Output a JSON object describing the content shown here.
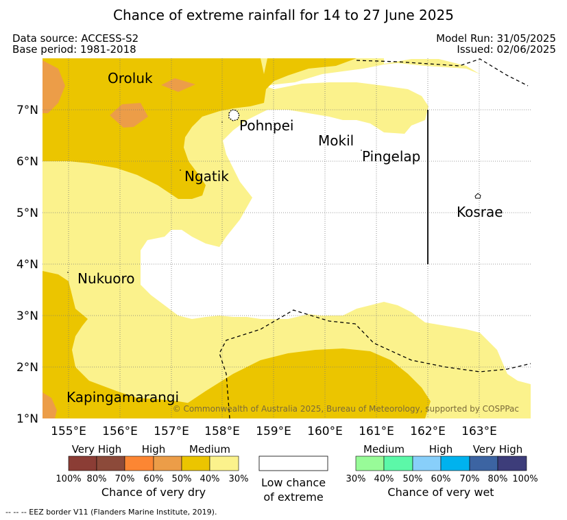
{
  "title": "Chance of extreme rainfall for 14 to 27 June 2025",
  "data_source": "Data source: ACCESS-S2",
  "base_period": "Base period: 1981-2018",
  "model_run": "Model Run: 31/05/2025",
  "issued": "Issued: 02/06/2025",
  "map": {
    "lon_ticks": [
      "155°E",
      "156°E",
      "157°E",
      "158°E",
      "159°E",
      "160°E",
      "161°E",
      "162°E",
      "163°E"
    ],
    "lat_ticks": [
      "1°N",
      "2°N",
      "3°N",
      "4°N",
      "5°N",
      "6°N",
      "7°N"
    ],
    "places": [
      "Oroluk",
      "Pohnpei",
      "Mokil",
      "Pingelap",
      "Ngatik",
      "Kosrae",
      "Nukuoro",
      "Kapingamarangi"
    ],
    "copyright": "© Commonwealth of Australia 2025, Bureau of Meteorology, supported by COSPPac",
    "colors": {
      "dry_very_high_1": "#8b3d35",
      "dry_very_high_2": "#8c4a3a",
      "dry_high_1": "#fc8633",
      "dry_high_2": "#ec9d48",
      "dry_medium_1": "#ebc500",
      "dry_medium_2": "#fbf28c",
      "wet_medium_1": "#98fb98",
      "wet_medium_2": "#5cf8a8",
      "wet_high_1": "#88cffa",
      "wet_high_2": "#00b2ee",
      "wet_very_high_1": "#3c64a2",
      "wet_very_high_2": "#3d3d7a"
    }
  },
  "legend": {
    "dry": {
      "labels": [
        "Very High",
        "High",
        "Medium"
      ],
      "percents": [
        "100%",
        "80%",
        "70%",
        "60%",
        "50%",
        "40%",
        "30%"
      ],
      "caption": "Chance of very dry"
    },
    "low": {
      "line1": "Low chance",
      "line2": "of extreme"
    },
    "wet": {
      "labels": [
        "Medium",
        "High",
        "Very High"
      ],
      "percents": [
        "30%",
        "40%",
        "50%",
        "60%",
        "70%",
        "80%",
        "100%"
      ],
      "caption": "Chance of very wet"
    }
  },
  "footer_note": "--  --  -- EEZ border V11 (Flanders Marine Institute, 2019)."
}
